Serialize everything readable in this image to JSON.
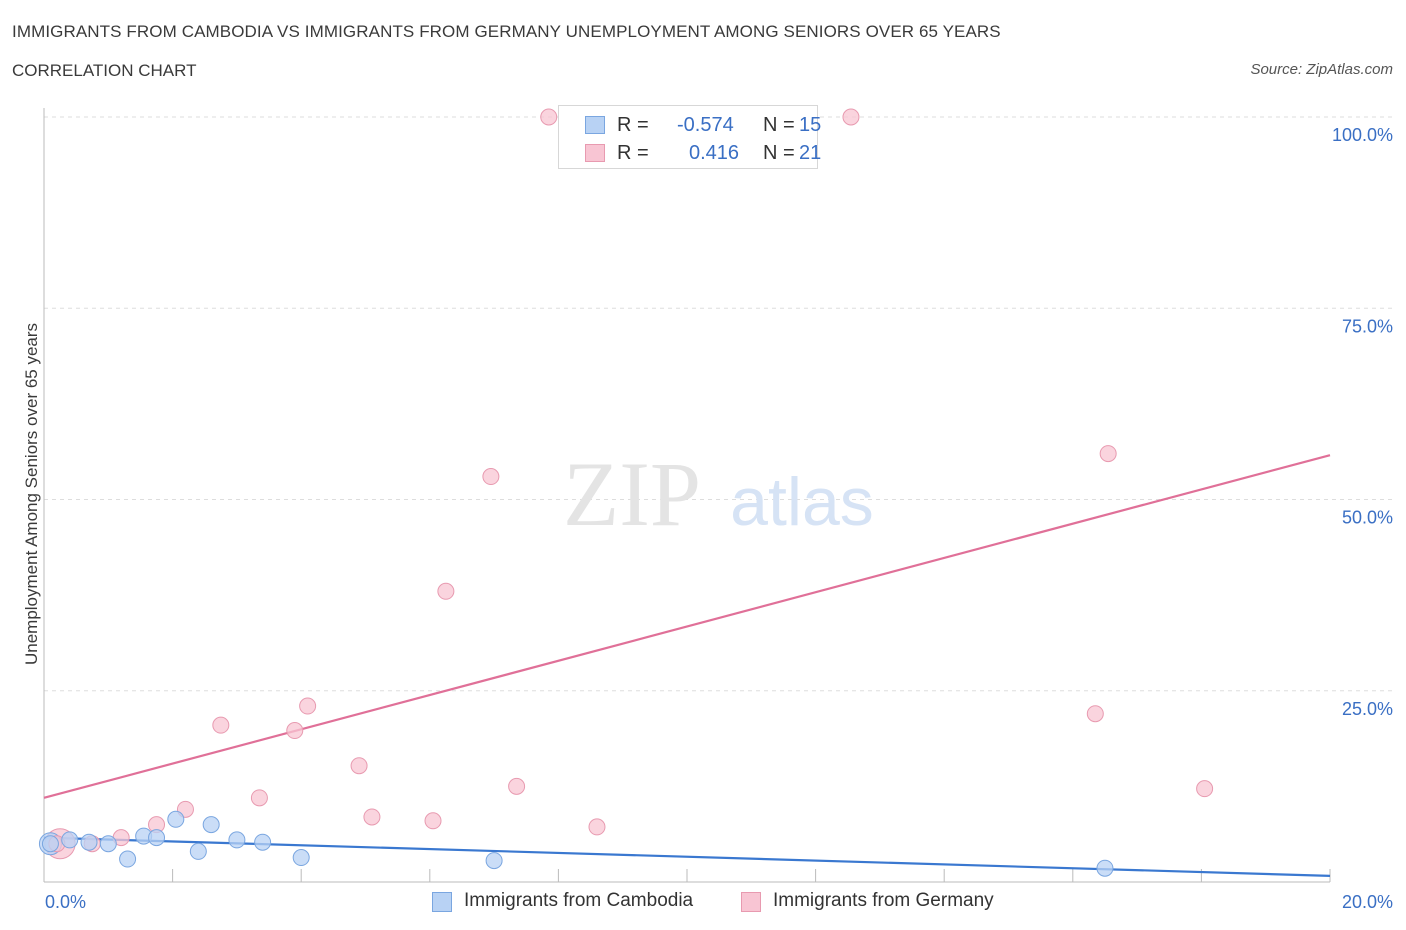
{
  "title": "IMMIGRANTS FROM CAMBODIA VS IMMIGRANTS FROM GERMANY UNEMPLOYMENT AMONG SENIORS OVER 65 YEARS",
  "subtitle": "CORRELATION CHART",
  "source": "Source: ZipAtlas.com",
  "watermark": {
    "zip": "ZIP",
    "atlas": "atlas"
  },
  "legend_top": [
    {
      "r_label": "R =",
      "r_value": "-0.574",
      "n_label": "N =",
      "n_value": "15"
    },
    {
      "r_label": "R =",
      "r_value": "0.416",
      "n_label": "N =",
      "n_value": "21"
    }
  ],
  "legend_bottom": [
    {
      "label": "Immigrants from Cambodia"
    },
    {
      "label": "Immigrants from Germany"
    }
  ],
  "colors": {
    "cambodia_fill": "#b8d2f4",
    "cambodia_stroke": "#7aa6e0",
    "cambodia_line": "#3a78d0",
    "germany_fill": "#f8c5d3",
    "germany_stroke": "#e89ab0",
    "germany_line": "#e07098",
    "axis_text": "#3a6fc4",
    "grid": "#dddddd"
  },
  "chart_data": {
    "type": "scatter",
    "title": "IMMIGRANTS FROM CAMBODIA VS IMMIGRANTS FROM GERMANY UNEMPLOYMENT AMONG SENIORS OVER 65 YEARS",
    "xlabel": "",
    "ylabel": "Unemployment Among Seniors over 65 years",
    "xlim": [
      0,
      20
    ],
    "ylim": [
      0,
      100
    ],
    "x_tick_labels": [
      "0.0%",
      "20.0%"
    ],
    "y_tick_labels": [
      "25.0%",
      "50.0%",
      "75.0%",
      "100.0%"
    ],
    "y_ticks": [
      25,
      50,
      75,
      100
    ],
    "series": [
      {
        "name": "Immigrants from Cambodia",
        "points": [
          [
            0.1,
            5.0
          ],
          [
            0.4,
            5.5
          ],
          [
            0.7,
            5.2
          ],
          [
            1.0,
            5.0
          ],
          [
            1.3,
            3.0
          ],
          [
            1.55,
            6.0
          ],
          [
            1.75,
            5.8
          ],
          [
            2.05,
            8.2
          ],
          [
            2.4,
            4.0
          ],
          [
            2.6,
            7.5
          ],
          [
            3.0,
            5.5
          ],
          [
            3.4,
            5.2
          ],
          [
            4.0,
            3.2
          ],
          [
            7.0,
            2.8
          ],
          [
            16.5,
            1.8
          ]
        ],
        "trend": {
          "x": [
            0,
            20
          ],
          "y": [
            5.8,
            0.8
          ]
        }
      },
      {
        "name": "Immigrants from Germany",
        "points": [
          [
            0.2,
            5.0
          ],
          [
            0.75,
            5.0
          ],
          [
            1.2,
            5.8
          ],
          [
            1.75,
            7.5
          ],
          [
            2.2,
            9.5
          ],
          [
            2.75,
            20.5
          ],
          [
            3.35,
            11.0
          ],
          [
            3.9,
            19.8
          ],
          [
            4.1,
            23.0
          ],
          [
            4.9,
            15.2
          ],
          [
            5.1,
            8.5
          ],
          [
            6.05,
            8.0
          ],
          [
            6.25,
            38.0
          ],
          [
            6.95,
            53.0
          ],
          [
            7.35,
            12.5
          ],
          [
            7.85,
            100.0
          ],
          [
            8.6,
            7.2
          ],
          [
            12.55,
            100.0
          ],
          [
            16.35,
            22.0
          ],
          [
            16.55,
            56.0
          ],
          [
            18.05,
            12.2
          ]
        ],
        "trend": {
          "x": [
            0,
            20
          ],
          "y": [
            11.0,
            55.8
          ]
        }
      }
    ]
  }
}
